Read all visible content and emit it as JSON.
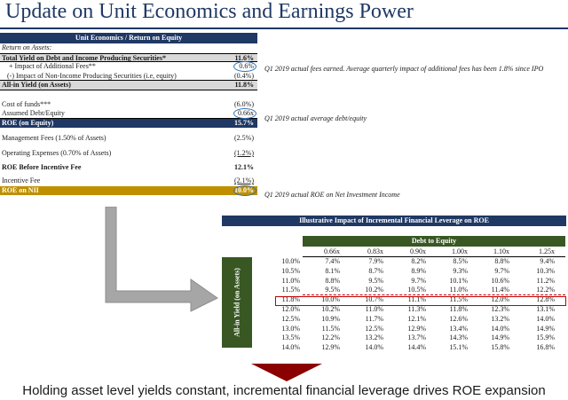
{
  "title": "Update on Unit Economics and Earnings Power",
  "roe_table": {
    "header": "Unit Economics / Return on Equity",
    "rows": [
      {
        "label": "Return on Assets:",
        "value": ""
      },
      {
        "label": "Total Yield on Debt and Income Producing Securities*",
        "value": "11.6%"
      },
      {
        "label": "+ Impact of Additional Fees**",
        "value": "0.6%"
      },
      {
        "label": "(-)  Impact of Non-Income Producing Securities (i.e, equity)",
        "value": "(0.4%)"
      },
      {
        "label": "All-in Yield (on Assets)",
        "value": "11.8%"
      },
      {
        "label": "",
        "value": ""
      },
      {
        "label": "Cost of funds***",
        "value": "(6.0%)"
      },
      {
        "label": "Assumed Debt/Equity",
        "value": "0.66x"
      },
      {
        "label": "ROE (on Equity)",
        "value": "15.7%"
      },
      {
        "label": "Management Fees (1.50% of Assets)",
        "value": "(2.5%)"
      },
      {
        "label": "Operating Expenses (0.70% of Assets)",
        "value": "(1.2%)"
      },
      {
        "label": "ROE Before Incentive Fee",
        "value": "12.1%"
      },
      {
        "label": "Incentive Fee",
        "value": "(2.1%)"
      },
      {
        "label": "ROE on NII",
        "value": "10.0%"
      }
    ]
  },
  "notes": {
    "fees": "Q1 2019 actual fees earned.  Average quarterly impact of additional fees has been 1.8% since IPO",
    "debt_equity": "Q1 2019 actual average debt/equity",
    "roe_nii": "Q1 2019 actual ROE on Net Investment Income"
  },
  "sensitivity": {
    "title": "Illustrative Impact of Incremental Financial Leverage on ROE",
    "col_group_label": "Debt to Equity",
    "row_axis_label": "All-in Yield (on Assets)",
    "columns": [
      "0.66x",
      "0.83x",
      "0.90x",
      "1.00x",
      "1.10x",
      "1.25x"
    ],
    "rows": [
      {
        "yield": "10.0%",
        "values": [
          "7.4%",
          "7.9%",
          "8.2%",
          "8.5%",
          "8.8%",
          "9.4%"
        ]
      },
      {
        "yield": "10.5%",
        "values": [
          "8.1%",
          "8.7%",
          "8.9%",
          "9.3%",
          "9.7%",
          "10.3%"
        ]
      },
      {
        "yield": "11.0%",
        "values": [
          "8.8%",
          "9.5%",
          "9.7%",
          "10.1%",
          "10.6%",
          "11.2%"
        ]
      },
      {
        "yield": "11.5%",
        "values": [
          "9.5%",
          "10.2%",
          "10.5%",
          "11.0%",
          "11.4%",
          "12.2%"
        ]
      },
      {
        "yield": "11.8%",
        "values": [
          "10.0%",
          "10.7%",
          "11.1%",
          "11.5%",
          "12.0%",
          "12.8%"
        ]
      },
      {
        "yield": "12.0%",
        "values": [
          "10.2%",
          "11.0%",
          "11.3%",
          "11.8%",
          "12.3%",
          "13.1%"
        ]
      },
      {
        "yield": "12.5%",
        "values": [
          "10.9%",
          "11.7%",
          "12.1%",
          "12.6%",
          "13.2%",
          "14.0%"
        ]
      },
      {
        "yield": "13.0%",
        "values": [
          "11.5%",
          "12.5%",
          "12.9%",
          "13.4%",
          "14.0%",
          "14.9%"
        ]
      },
      {
        "yield": "13.5%",
        "values": [
          "12.2%",
          "13.2%",
          "13.7%",
          "14.3%",
          "14.9%",
          "15.9%"
        ]
      },
      {
        "yield": "14.0%",
        "values": [
          "12.9%",
          "14.0%",
          "14.4%",
          "15.1%",
          "15.8%",
          "16.8%"
        ]
      }
    ]
  },
  "footer": "Holding asset level yields constant, incremental financial leverage drives ROE expansion",
  "colors": {
    "navy": "#1f3864",
    "green": "#385723",
    "gold": "#bf8f00",
    "highlight_red": "#c00000",
    "circle_blue": "#2e75b6",
    "arrow_gray": "#a6a6a6",
    "footer_triangle": "#8b0000"
  }
}
